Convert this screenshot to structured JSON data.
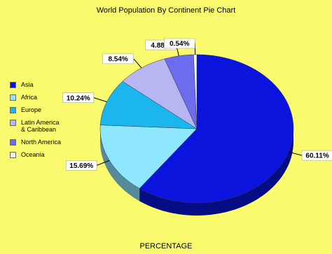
{
  "chart_data": {
    "type": "pie",
    "title": "World Population By Continent Pie Chart",
    "xlabel": "PERCENTAGE",
    "categories": [
      "Asia",
      "Africa",
      "Europe",
      "Latin America & Caribbean",
      "North America",
      "Oceania"
    ],
    "values": [
      60.11,
      15.69,
      10.24,
      8.54,
      4.88,
      0.54
    ],
    "value_labels": [
      "60.11%",
      "15.69%",
      "10.24%",
      "8.54%",
      "4.88%",
      "0.54%"
    ],
    "colors": [
      "#0a14dc",
      "#8ee6ff",
      "#1cb6ee",
      "#b8b6f2",
      "#6c6cf0",
      "#eef6ff"
    ],
    "legend": "left"
  }
}
